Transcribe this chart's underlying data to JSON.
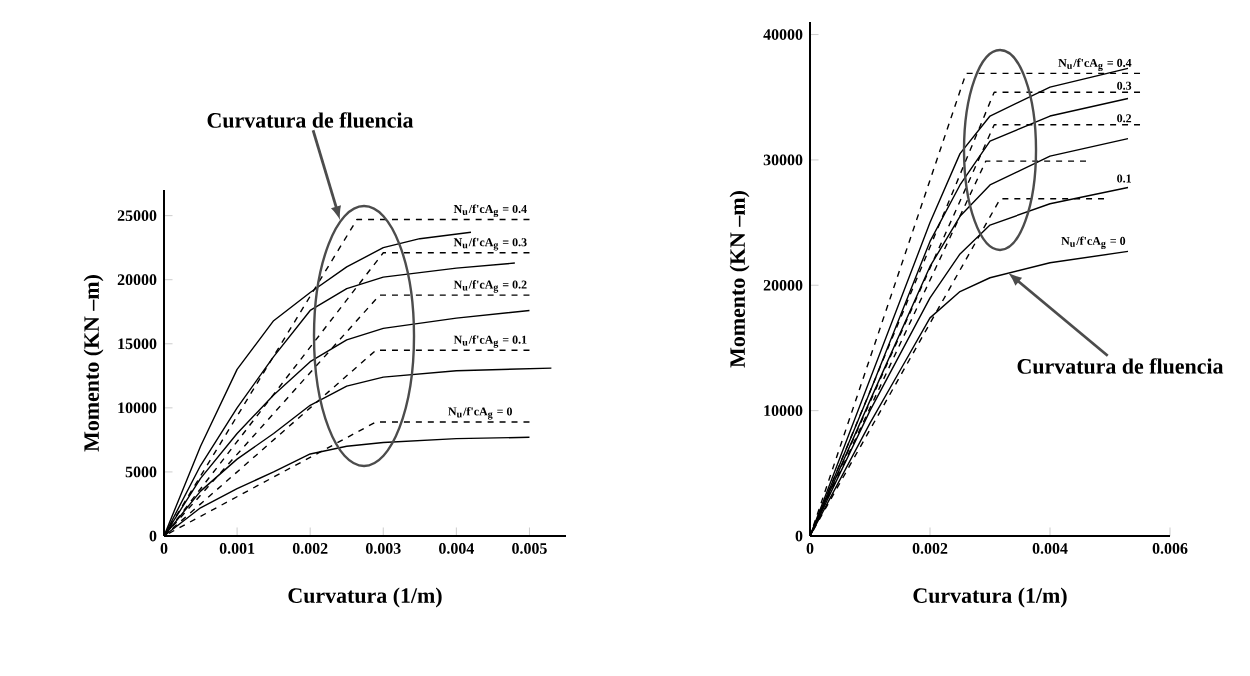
{
  "chart_data": [
    {
      "type": "line",
      "xlabel": "Curvatura (1/m)",
      "ylabel": "Momento (KN –m)",
      "xlim": [
        0,
        0.0055
      ],
      "ylim": [
        0,
        27000
      ],
      "xticks": [
        0,
        0.001,
        0.002,
        0.003,
        0.004,
        0.005
      ],
      "yticks": [
        0,
        5000,
        10000,
        15000,
        20000,
        25000
      ],
      "series": [
        {
          "color": "#000000",
          "line_style": "solid",
          "x": [
            0,
            0.0005,
            0.001,
            0.0015,
            0.002,
            0.0025,
            0.003,
            0.004,
            0.005
          ],
          "values": [
            0,
            2200,
            3700,
            5000,
            6400,
            7000,
            7300,
            7600,
            7700
          ]
        },
        {
          "color": "#000000",
          "line_style": "dashed",
          "x": [
            0,
            0.0029,
            0.005
          ],
          "values": [
            0,
            8900,
            8900
          ]
        },
        {
          "color": "#000000",
          "line_style": "solid",
          "x": [
            0,
            0.0005,
            0.001,
            0.0015,
            0.002,
            0.0025,
            0.003,
            0.004,
            0.0053
          ],
          "values": [
            0,
            3500,
            6000,
            8000,
            10200,
            11700,
            12400,
            12900,
            13100
          ]
        },
        {
          "color": "#000000",
          "line_style": "dashed",
          "x": [
            0,
            0.0029,
            0.005
          ],
          "values": [
            0,
            14500,
            14500
          ]
        },
        {
          "color": "#000000",
          "line_style": "solid",
          "x": [
            0,
            0.0005,
            0.001,
            0.0015,
            0.002,
            0.0025,
            0.003,
            0.004,
            0.005
          ],
          "values": [
            0,
            4500,
            8000,
            11000,
            13600,
            15300,
            16200,
            17000,
            17600
          ]
        },
        {
          "color": "#000000",
          "line_style": "dashed",
          "x": [
            0,
            0.00295,
            0.005
          ],
          "values": [
            0,
            18800,
            18800
          ]
        },
        {
          "color": "#000000",
          "line_style": "solid",
          "x": [
            0,
            0.0005,
            0.001,
            0.0015,
            0.002,
            0.0025,
            0.003,
            0.004,
            0.0048
          ],
          "values": [
            0,
            5500,
            10000,
            14000,
            17600,
            19300,
            20200,
            20900,
            21300
          ]
        },
        {
          "color": "#000000",
          "line_style": "dashed",
          "x": [
            0,
            0.003,
            0.005
          ],
          "values": [
            0,
            22100,
            22100
          ]
        },
        {
          "color": "#000000",
          "line_style": "solid",
          "x": [
            0,
            0.0005,
            0.001,
            0.0015,
            0.002,
            0.0025,
            0.003,
            0.0035,
            0.0042
          ],
          "values": [
            0,
            7000,
            13000,
            16800,
            19000,
            21000,
            22500,
            23200,
            23700
          ]
        },
        {
          "color": "#000000",
          "line_style": "dashed",
          "x": [
            0,
            0.00264,
            0.005
          ],
          "values": [
            0,
            24700,
            24700
          ]
        }
      ],
      "annotations": [
        "Curvatura de fluencia",
        {
          "text": "N$_{u}$/f'cA$_{g}$ = 0",
          "x": 0.0048,
          "y": 8900
        },
        {
          "text": "N$_{u}$/f'cA$_{g}$ = 0.1",
          "x": 0.005,
          "y": 14500
        },
        {
          "text": "N$_{u}$/f'cA$_{g}$ = 0.2",
          "x": 0.005,
          "y": 18800
        },
        {
          "text": "N$_{u}$/f'cA$_{g}$ = 0.3",
          "x": 0.005,
          "y": 22100
        },
        {
          "text": "N$_{u}$/f'cA$_{g}$ = 0.4",
          "x": 0.005,
          "y": 24700
        }
      ]
    },
    {
      "type": "line",
      "xlabel": "Curvatura (1/m)",
      "ylabel": "Momento (KN –m)",
      "xlim": [
        0,
        0.006
      ],
      "ylim": [
        0,
        41000
      ],
      "xticks": [
        0,
        0.002,
        0.004,
        0.006
      ],
      "yticks": [
        0,
        10000,
        20000,
        30000,
        40000
      ],
      "series": [
        {
          "color": "#000000",
          "line_style": "solid",
          "x": [
            0,
            0.0005,
            0.001,
            0.0015,
            0.002,
            0.0025,
            0.003,
            0.004,
            0.0053
          ],
          "values": [
            0,
            4500,
            9000,
            13200,
            17400,
            19500,
            20600,
            21800,
            22700
          ]
        },
        {
          "color": "#000000",
          "line_style": "dashed",
          "x": [
            0,
            0.00317,
            0.0049
          ],
          "values": [
            0,
            26900,
            26900
          ]
        },
        {
          "color": "#000000",
          "line_style": "solid",
          "x": [
            0,
            0.001,
            0.002,
            0.0025,
            0.003,
            0.004,
            0.0053
          ],
          "values": [
            0,
            10000,
            19000,
            22500,
            24800,
            26500,
            27800
          ]
        },
        {
          "color": "#000000",
          "line_style": "dashed",
          "x": [
            0,
            0.00293,
            0.0046
          ],
          "values": [
            0,
            29900,
            29900
          ]
        },
        {
          "color": "#000000",
          "line_style": "solid",
          "x": [
            0,
            0.001,
            0.002,
            0.0025,
            0.003,
            0.004,
            0.0053
          ],
          "values": [
            0,
            10800,
            21500,
            25500,
            28000,
            30300,
            31700
          ]
        },
        {
          "color": "#000000",
          "line_style": "dashed",
          "x": [
            0,
            0.00307,
            0.0055
          ],
          "values": [
            0,
            32800,
            32800
          ]
        },
        {
          "color": "#000000",
          "line_style": "solid",
          "x": [
            0,
            0.001,
            0.002,
            0.0025,
            0.003,
            0.004,
            0.0053
          ],
          "values": [
            0,
            11500,
            23500,
            28000,
            31500,
            33500,
            34900
          ]
        },
        {
          "color": "#000000",
          "line_style": "dashed",
          "x": [
            0,
            0.00307,
            0.0055
          ],
          "values": [
            0,
            35400,
            35400
          ]
        },
        {
          "color": "#000000",
          "line_style": "solid",
          "x": [
            0,
            0.001,
            0.002,
            0.0025,
            0.003,
            0.004,
            0.0053
          ],
          "values": [
            0,
            12500,
            25000,
            30500,
            33500,
            35800,
            37300
          ]
        },
        {
          "color": "#000000",
          "line_style": "dashed",
          "x": [
            0,
            0.0026,
            0.0055
          ],
          "values": [
            0,
            36900,
            36900
          ]
        }
      ],
      "annotations": [
        {
          "text": "Curvatura de fluencia",
          "x": 0.0033,
          "y": 21000
        },
        {
          "text": "N$_{u}$/f'cA$_{g}$ = 0",
          "x": 0.0053,
          "y": 22700
        },
        {
          "text": "0.1",
          "x": 0.0054,
          "y": 28000
        },
        {
          "text": "0.2",
          "x": 0.0054,
          "y": 32800
        },
        {
          "text": "0.3",
          "x": 0.0054,
          "y": 35400
        },
        {
          "text": "N$_{u}$/f'cA$_{g}$ = 0.4",
          "x": 0.0054,
          "y": 36900
        }
      ]
    }
  ]
}
